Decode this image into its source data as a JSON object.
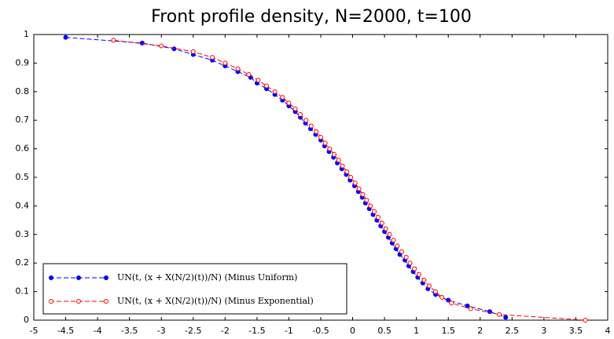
{
  "chart_data": {
    "type": "line",
    "title": "Front profile density, N=2000, t=100",
    "xlim": [
      -5,
      4
    ],
    "ylim": [
      0,
      1
    ],
    "xticks": [
      -5,
      -4.5,
      -4,
      -3.5,
      -3,
      -2.5,
      -2,
      -1.5,
      -1,
      -0.5,
      0,
      0.5,
      1,
      1.5,
      2,
      2.5,
      3,
      3.5,
      4
    ],
    "yticks": [
      0,
      0.1,
      0.2,
      0.3,
      0.4,
      0.5,
      0.6,
      0.7,
      0.8,
      0.9,
      1
    ],
    "legend": "lower left",
    "series": [
      {
        "name": "UN(t, (x + X(N/2)(t))/N) (Minus Uniform)",
        "color": "#0000ff",
        "marker": "filled",
        "x": [
          -4.5,
          -3.3,
          -2.8,
          -2.5,
          -2.2,
          -2.0,
          -1.8,
          -1.6,
          -1.5,
          -1.35,
          -1.22,
          -1.1,
          -1.0,
          -0.9,
          -0.82,
          -0.74,
          -0.66,
          -0.58,
          -0.5,
          -0.44,
          -0.37,
          -0.3,
          -0.24,
          -0.17,
          -0.1,
          -0.04,
          0.03,
          0.09,
          0.15,
          0.2,
          0.26,
          0.32,
          0.38,
          0.44,
          0.5,
          0.56,
          0.62,
          0.68,
          0.74,
          0.82,
          0.88,
          0.95,
          1.02,
          1.1,
          1.18,
          1.3,
          1.5,
          1.8,
          2.15,
          2.4
        ],
        "values": [
          0.99,
          0.97,
          0.95,
          0.93,
          0.91,
          0.89,
          0.87,
          0.85,
          0.83,
          0.81,
          0.79,
          0.77,
          0.75,
          0.73,
          0.71,
          0.69,
          0.67,
          0.65,
          0.63,
          0.61,
          0.59,
          0.57,
          0.55,
          0.53,
          0.51,
          0.49,
          0.47,
          0.45,
          0.43,
          0.41,
          0.39,
          0.37,
          0.35,
          0.33,
          0.31,
          0.29,
          0.27,
          0.25,
          0.23,
          0.21,
          0.19,
          0.17,
          0.15,
          0.13,
          0.11,
          0.09,
          0.07,
          0.05,
          0.03,
          0.01
        ]
      },
      {
        "name": "UN(t, (x + X(N/2)(t))/N) (Minus Exponential)",
        "color": "#ff0000",
        "marker": "open",
        "x": [
          -3.75,
          -3.0,
          -2.5,
          -2.2,
          -2.0,
          -1.8,
          -1.63,
          -1.48,
          -1.35,
          -1.22,
          -1.1,
          -1.0,
          -0.9,
          -0.82,
          -0.73,
          -0.65,
          -0.57,
          -0.5,
          -0.43,
          -0.36,
          -0.29,
          -0.22,
          -0.16,
          -0.09,
          -0.03,
          0.04,
          0.1,
          0.16,
          0.22,
          0.28,
          0.34,
          0.4,
          0.46,
          0.52,
          0.58,
          0.64,
          0.7,
          0.77,
          0.84,
          0.9,
          0.97,
          1.04,
          1.12,
          1.2,
          1.3,
          1.4,
          1.55,
          1.85,
          2.3,
          3.65
        ],
        "values": [
          0.98,
          0.96,
          0.94,
          0.92,
          0.9,
          0.88,
          0.86,
          0.84,
          0.82,
          0.8,
          0.78,
          0.76,
          0.74,
          0.72,
          0.7,
          0.68,
          0.66,
          0.64,
          0.62,
          0.6,
          0.58,
          0.56,
          0.54,
          0.52,
          0.5,
          0.48,
          0.46,
          0.44,
          0.42,
          0.4,
          0.38,
          0.36,
          0.34,
          0.32,
          0.3,
          0.28,
          0.26,
          0.24,
          0.22,
          0.2,
          0.18,
          0.16,
          0.14,
          0.12,
          0.1,
          0.08,
          0.06,
          0.04,
          0.02,
          0
        ]
      }
    ]
  }
}
